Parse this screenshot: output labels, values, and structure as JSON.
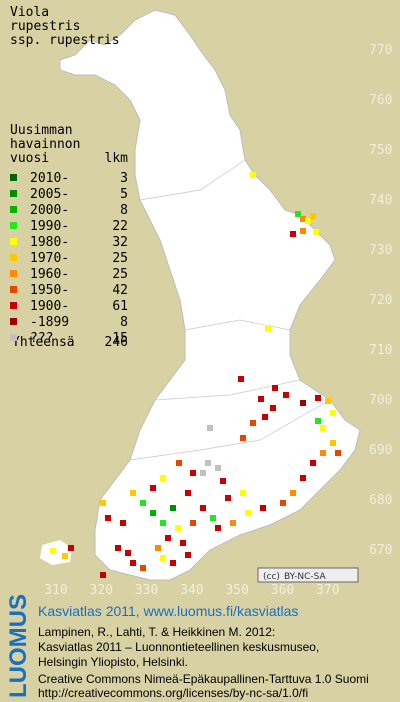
{
  "title": {
    "line1": "Viola",
    "line2": "rupestris",
    "line3": "ssp. rupestris"
  },
  "legend": {
    "header1": "Uusimman",
    "header2": "havainnon",
    "col_year": "vuosi",
    "col_count": "lkm",
    "rows": [
      {
        "label": "2010-",
        "count": 3,
        "color": "#006400"
      },
      {
        "label": "2005-",
        "count": 5,
        "color": "#008c00"
      },
      {
        "label": "2000-",
        "count": 8,
        "color": "#00b400"
      },
      {
        "label": "1990-",
        "count": 22,
        "color": "#22e622"
      },
      {
        "label": "1980-",
        "count": 32,
        "color": "#ffff00"
      },
      {
        "label": "1970-",
        "count": 25,
        "color": "#ffc800"
      },
      {
        "label": "1960-",
        "count": 25,
        "color": "#ff8c00"
      },
      {
        "label": "1950-",
        "count": 42,
        "color": "#e64600"
      },
      {
        "label": "1900-",
        "count": 61,
        "color": "#c80000"
      },
      {
        "label": "-1899",
        "count": 8,
        "color": "#a00000"
      },
      {
        "label": "???",
        "count": 15,
        "color": "#c0c0c0"
      }
    ],
    "total_label": "Yhteensä",
    "total_count": 246
  },
  "grid": {
    "north": [
      770,
      760,
      750,
      740,
      730,
      720,
      710,
      700,
      690,
      680,
      670
    ],
    "east": [
      310,
      320,
      330,
      340,
      350,
      360,
      370
    ]
  },
  "license_badge": "BY-NC-SA",
  "footer": {
    "logo": "LUOMUS",
    "headline": "Kasviatlas 2011, www.luomus.fi/kasviatlas",
    "citation1": "Lampinen, R., Lahti, T. & Heikkinen M. 2012:",
    "citation2": "Kasviatlas 2011 – Luonnontieteellinen keskusmuseo,",
    "citation3": "Helsingin Yliopisto, Helsinki.",
    "license1": "Creative Commons Nimeä-Epäkaupallinen-Tarttuva 1.0 Suomi",
    "license2": "http://creativecommons.org/licenses/by-nc-sa/1.0/fi"
  }
}
